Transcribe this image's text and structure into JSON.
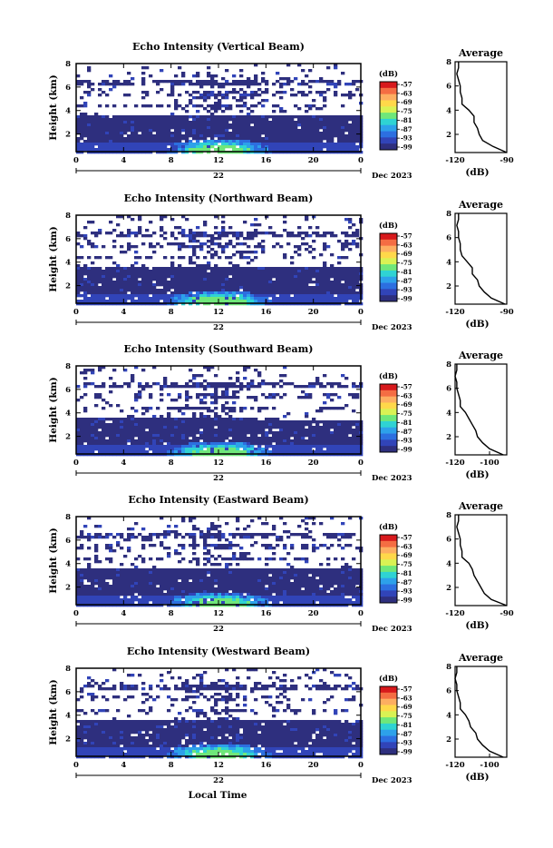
{
  "figure": {
    "x_axis_label": "Local Time",
    "date_day": "22",
    "date_month_year": "Dec 2023"
  },
  "colorbar": {
    "unit": "(dB)",
    "labels": [
      "-57",
      "-63",
      "-69",
      "-75",
      "-81",
      "-87",
      "-93",
      "-99"
    ],
    "colors": [
      "#d7191c",
      "#f46d43",
      "#fdae61",
      "#ffd84a",
      "#d9f254",
      "#6fe77a",
      "#2fd3d3",
      "#2da1ea",
      "#2c6fe0",
      "#3144b8",
      "#2e2f7e"
    ]
  },
  "chart_data": [
    {
      "type": "heatmap",
      "title": "Echo Intensity (Vertical Beam)",
      "xlabel": "Local Time",
      "ylabel": "Height (km)",
      "xlim": [
        0,
        24
      ],
      "ylim": [
        0.5,
        8
      ],
      "xticks": [
        "0",
        "4",
        "8",
        "12",
        "16",
        "20",
        "0"
      ],
      "yticks": [
        "2",
        "4",
        "6",
        "8"
      ],
      "profile": {
        "title": "Average",
        "xlabel": "(dB)",
        "xlim": [
          -120,
          -90
        ],
        "xticks": [
          "-120",
          "-90"
        ],
        "yticks": [
          "2",
          "4",
          "6",
          "8"
        ],
        "heights": [
          0.5,
          1.0,
          1.5,
          2.0,
          2.5,
          3.0,
          3.5,
          4.0,
          4.5,
          5.0,
          5.5,
          6.0,
          6.5,
          7.0,
          7.5,
          8.0
        ],
        "values": [
          -90,
          -98,
          -104,
          -106,
          -107,
          -109,
          -109,
          -112,
          -116,
          -116,
          -117,
          -117,
          -118,
          -119,
          -118,
          -118
        ]
      }
    },
    {
      "type": "heatmap",
      "title": "Echo Intensity (Northward Beam)",
      "xlabel": "Local Time",
      "ylabel": "Height (km)",
      "xlim": [
        0,
        24
      ],
      "ylim": [
        0.5,
        8
      ],
      "xticks": [
        "0",
        "4",
        "8",
        "12",
        "16",
        "20",
        "0"
      ],
      "yticks": [
        "2",
        "4",
        "6",
        "8"
      ],
      "profile": {
        "title": "Average",
        "xlabel": "(dB)",
        "xlim": [
          -120,
          -90
        ],
        "xticks": [
          "-120",
          "-90"
        ],
        "yticks": [
          "2",
          "4",
          "6",
          "8"
        ],
        "heights": [
          0.5,
          1.0,
          1.5,
          2.0,
          2.5,
          3.0,
          3.5,
          4.0,
          4.5,
          5.0,
          5.5,
          6.0,
          6.5,
          7.0,
          7.5,
          8.0
        ],
        "values": [
          -91,
          -99,
          -103,
          -106,
          -107,
          -110,
          -110,
          -113,
          -116,
          -117,
          -117,
          -118,
          -118,
          -119,
          -118,
          -118
        ]
      }
    },
    {
      "type": "heatmap",
      "title": "Echo Intensity (Southward Beam)",
      "xlabel": "Local Time",
      "ylabel": "Height (km)",
      "xlim": [
        0,
        24
      ],
      "ylim": [
        0.5,
        8
      ],
      "xticks": [
        "0",
        "4",
        "8",
        "12",
        "16",
        "20",
        "0"
      ],
      "yticks": [
        "2",
        "4",
        "6",
        "8"
      ],
      "profile": {
        "title": "Average",
        "xlabel": "(dB)",
        "xlim": [
          -120,
          -90
        ],
        "xticks": [
          "-120",
          "-100"
        ],
        "yticks": [
          "2",
          "4",
          "6",
          "8"
        ],
        "heights": [
          0.5,
          1.0,
          1.5,
          2.0,
          2.5,
          3.0,
          3.5,
          4.0,
          4.5,
          5.0,
          5.5,
          6.0,
          6.5,
          7.0,
          7.5,
          8.0
        ],
        "values": [
          -92,
          -100,
          -104,
          -107,
          -108,
          -110,
          -112,
          -114,
          -117,
          -117,
          -118,
          -119,
          -119,
          -120,
          -119,
          -119
        ]
      }
    },
    {
      "type": "heatmap",
      "title": "Echo Intensity (Eastward Beam)",
      "xlabel": "Local Time",
      "ylabel": "Height (km)",
      "xlim": [
        0,
        24
      ],
      "ylim": [
        0.5,
        8
      ],
      "xticks": [
        "0",
        "4",
        "8",
        "12",
        "16",
        "20",
        "0"
      ],
      "yticks": [
        "2",
        "4",
        "6",
        "8"
      ],
      "profile": {
        "title": "Average",
        "xlabel": "(dB)",
        "xlim": [
          -120,
          -90
        ],
        "xticks": [
          "-120",
          "-90"
        ],
        "yticks": [
          "2",
          "4",
          "6",
          "8"
        ],
        "heights": [
          0.5,
          1.0,
          1.5,
          2.0,
          2.5,
          3.0,
          3.5,
          4.0,
          4.5,
          5.0,
          5.5,
          6.0,
          6.5,
          7.0,
          7.5,
          8.0
        ],
        "values": [
          -90,
          -99,
          -103,
          -105,
          -107,
          -109,
          -110,
          -112,
          -116,
          -116,
          -117,
          -117,
          -118,
          -119,
          -118,
          -118
        ]
      }
    },
    {
      "type": "heatmap",
      "title": "Echo Intensity (Westward Beam)",
      "xlabel": "Local Time",
      "ylabel": "Height (km)",
      "xlim": [
        0,
        24
      ],
      "ylim": [
        0.5,
        8
      ],
      "xticks": [
        "0",
        "4",
        "8",
        "12",
        "16",
        "20",
        "0"
      ],
      "yticks": [
        "2",
        "4",
        "6",
        "8"
      ],
      "profile": {
        "title": "Average",
        "xlabel": "(dB)",
        "xlim": [
          -120,
          -90
        ],
        "xticks": [
          "-120",
          "-100"
        ],
        "yticks": [
          "2",
          "4",
          "6",
          "8"
        ],
        "heights": [
          0.5,
          1.0,
          1.5,
          2.0,
          2.5,
          3.0,
          3.5,
          4.0,
          4.5,
          5.0,
          5.5,
          6.0,
          6.5,
          7.0,
          7.5,
          8.0
        ],
        "values": [
          -92,
          -100,
          -104,
          -107,
          -108,
          -111,
          -112,
          -114,
          -117,
          -117,
          -118,
          -119,
          -119,
          -120,
          -119,
          -119
        ]
      }
    }
  ]
}
